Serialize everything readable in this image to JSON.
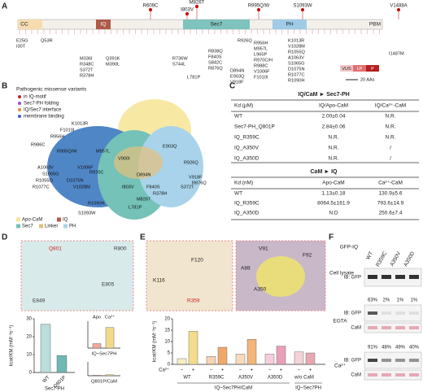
{
  "figure": {
    "panel_labels": [
      "A",
      "B",
      "C",
      "D",
      "E",
      "F"
    ],
    "A": {
      "domains": [
        "CC",
        "IQ",
        "Sec7",
        "PH",
        "PBM"
      ],
      "top_variants": [
        "R609C",
        "M826T",
        "I803V",
        "R995Q/W",
        "S1093W",
        "V1488A"
      ],
      "bottom_variants": [
        "E25G",
        "I30T",
        "Q53R",
        "M336I",
        "R348C",
        "S372T",
        "R378H",
        "Q391K",
        "M390L",
        "R736W",
        "S744L",
        "L781P",
        "R838Q",
        "F840S",
        "S842C",
        "R876Q",
        "R926Q",
        "D894N",
        "E903Q",
        "V918F",
        "R956H",
        "M957L",
        "L965P",
        "R970C/H",
        "R988C",
        "V1006F",
        "F1010I",
        "K1013R",
        "V1028M",
        "R1055Q",
        "A1063V",
        "S1065G",
        "D1075N",
        "R1077C",
        "R1090H",
        "I1487M"
      ],
      "legend": [
        "VUS",
        "LP",
        "P"
      ],
      "scale": "20 AAs"
    },
    "B": {
      "legend_title": "Pathogenic missense variants",
      "legend": [
        "in IQ-motif",
        "Sec7-PH folding",
        "IQ/Sec7 interface",
        "membrane binding"
      ],
      "residues": [
        "K1013R",
        "F1010I",
        "R956H",
        "R986C",
        "R995Q/W",
        "M957L",
        "A1063V",
        "S1065G",
        "R1055Q",
        "R1077C",
        "V1006F",
        "D1075N",
        "V1028M",
        "R1090H",
        "S1093W",
        "L781P",
        "M826T",
        "R378H",
        "S372T",
        "R876Q",
        "V918F",
        "F840S",
        "I803V",
        "D894N",
        "E903Q",
        "R926Q",
        "V900I",
        "R970C"
      ],
      "domain_legend": [
        "Apo-CaM",
        "IQ",
        "Sec7",
        "Linker",
        "PH"
      ]
    },
    "C": {
      "table1": {
        "title": "IQ/CaM ► Sec7-PH",
        "header": [
          "Kd (μM)",
          "IQ/Apo-CaM",
          "IQ/Ca²⁺-CaM"
        ],
        "rows": [
          [
            "WT",
            "2.00±0.04",
            "N.R."
          ],
          [
            "Sec7-PH_Q801P",
            "2.84±0.06",
            "N.R."
          ],
          [
            "IQ_R359C",
            "N.R.",
            "N.R."
          ],
          [
            "IQ_A350V",
            "N.R.",
            "/"
          ],
          [
            "IQ_A350D",
            "N.R.",
            "/"
          ]
        ]
      },
      "table2": {
        "title": "CaM ► IQ",
        "header": [
          "Kd (nM)",
          "Apo-CaM",
          "Ca²⁺-CaM"
        ],
        "rows": [
          [
            "WT",
            "1.13±0.18",
            "130.9±5.6"
          ],
          [
            "IQ_R359C",
            "8064.5±161.9",
            "793.6±14.9"
          ],
          [
            "IQ_A350D",
            "N.D",
            "250.6±7.4"
          ]
        ]
      }
    },
    "D": {
      "residues": [
        "Q801",
        "R800",
        "E805",
        "E849"
      ]
    },
    "E": {
      "residues_left": [
        "F120",
        "K116",
        "R359"
      ],
      "residues_right": [
        "V91",
        "F92",
        "A88",
        "A350"
      ]
    },
    "F": {
      "construct": "GFP-IQ",
      "lanes": [
        "WT",
        "R359C",
        "A350V",
        "A350D"
      ],
      "lysate": "Cell lysate",
      "egta": "EGTA",
      "ca": "Ca²⁺",
      "ib_gfp": "IB:\nGFP",
      "cam": "CaM",
      "egta_percent": [
        "63%",
        "2%",
        "1%",
        "1%"
      ],
      "ca_percent": [
        "91%",
        "48%",
        "49%",
        "40%"
      ]
    }
  },
  "chart_data": [
    {
      "type": "bar",
      "y_label": "kcat/KM (mM⁻¹s⁻¹)",
      "group_label": "Sec7-PH",
      "categories": [
        "WT",
        "Q801P"
      ],
      "values": [
        27,
        9.5
      ],
      "colors": [
        "#b9dedb",
        "#6fb8b3"
      ],
      "ylim": [
        0,
        30
      ],
      "yticks": [
        0,
        10,
        20,
        30
      ]
    },
    {
      "type": "bar",
      "categories": [
        "Apo",
        "Ca²⁺"
      ],
      "colors": [
        "#f2a99a",
        "#f3d98a"
      ],
      "ylim": [
        0,
        3
      ],
      "series": [
        {
          "name": "IQ~Sec7PH",
          "values": [
            0.5,
            2.3
          ]
        },
        {
          "name": "Q801P/CaM",
          "values": [
            0.1,
            0.2
          ]
        }
      ]
    },
    {
      "type": "bar",
      "y_label": "kcat/KM (mM⁻¹s⁻¹)",
      "legend_label": "Ca²⁺",
      "categories": [
        "WT",
        "R359C",
        "A350V",
        "A350D",
        "w/o CaM"
      ],
      "colors": [
        "#f3dc8c",
        "#f0a868",
        "#f2b57a",
        "#e9a0b8",
        "#e7a8b0"
      ],
      "series": [
        {
          "name": "−",
          "values": [
            2.5,
            3.5,
            4.5,
            4.5,
            5.5
          ]
        },
        {
          "name": "+",
          "values": [
            14.5,
            7.5,
            11,
            8,
            5
          ]
        }
      ],
      "group_labels": [
        "IQ~Sec7PH/CaM",
        "IQ~Sec7PH"
      ],
      "ylim": [
        0,
        20
      ],
      "yticks": [
        0,
        5,
        10,
        15,
        20
      ]
    }
  ]
}
